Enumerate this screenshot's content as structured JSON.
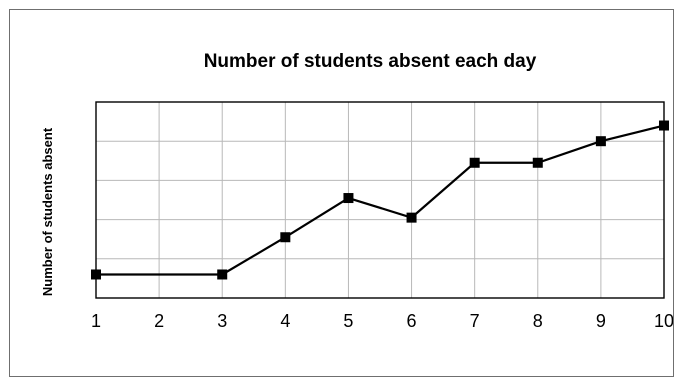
{
  "chart_data": {
    "type": "line",
    "title": "Number of students absent each day",
    "xlabel": "",
    "ylabel": "Number of students absent",
    "x": [
      1,
      2,
      3,
      4,
      5,
      6,
      7,
      8,
      9,
      10
    ],
    "xticks": [
      "1",
      "2",
      "3",
      "4",
      "5",
      "6",
      "7",
      "8",
      "9",
      "10"
    ],
    "xlim": [
      1,
      10
    ],
    "ylim": [
      0,
      5
    ],
    "yticks_labeled": false,
    "grid": true,
    "series": [
      {
        "values": [
          0.6,
          null,
          0.6,
          1.55,
          2.55,
          2.05,
          3.45,
          3.45,
          4.0,
          4.4
        ],
        "color": "#000000",
        "marker": "square"
      }
    ]
  }
}
